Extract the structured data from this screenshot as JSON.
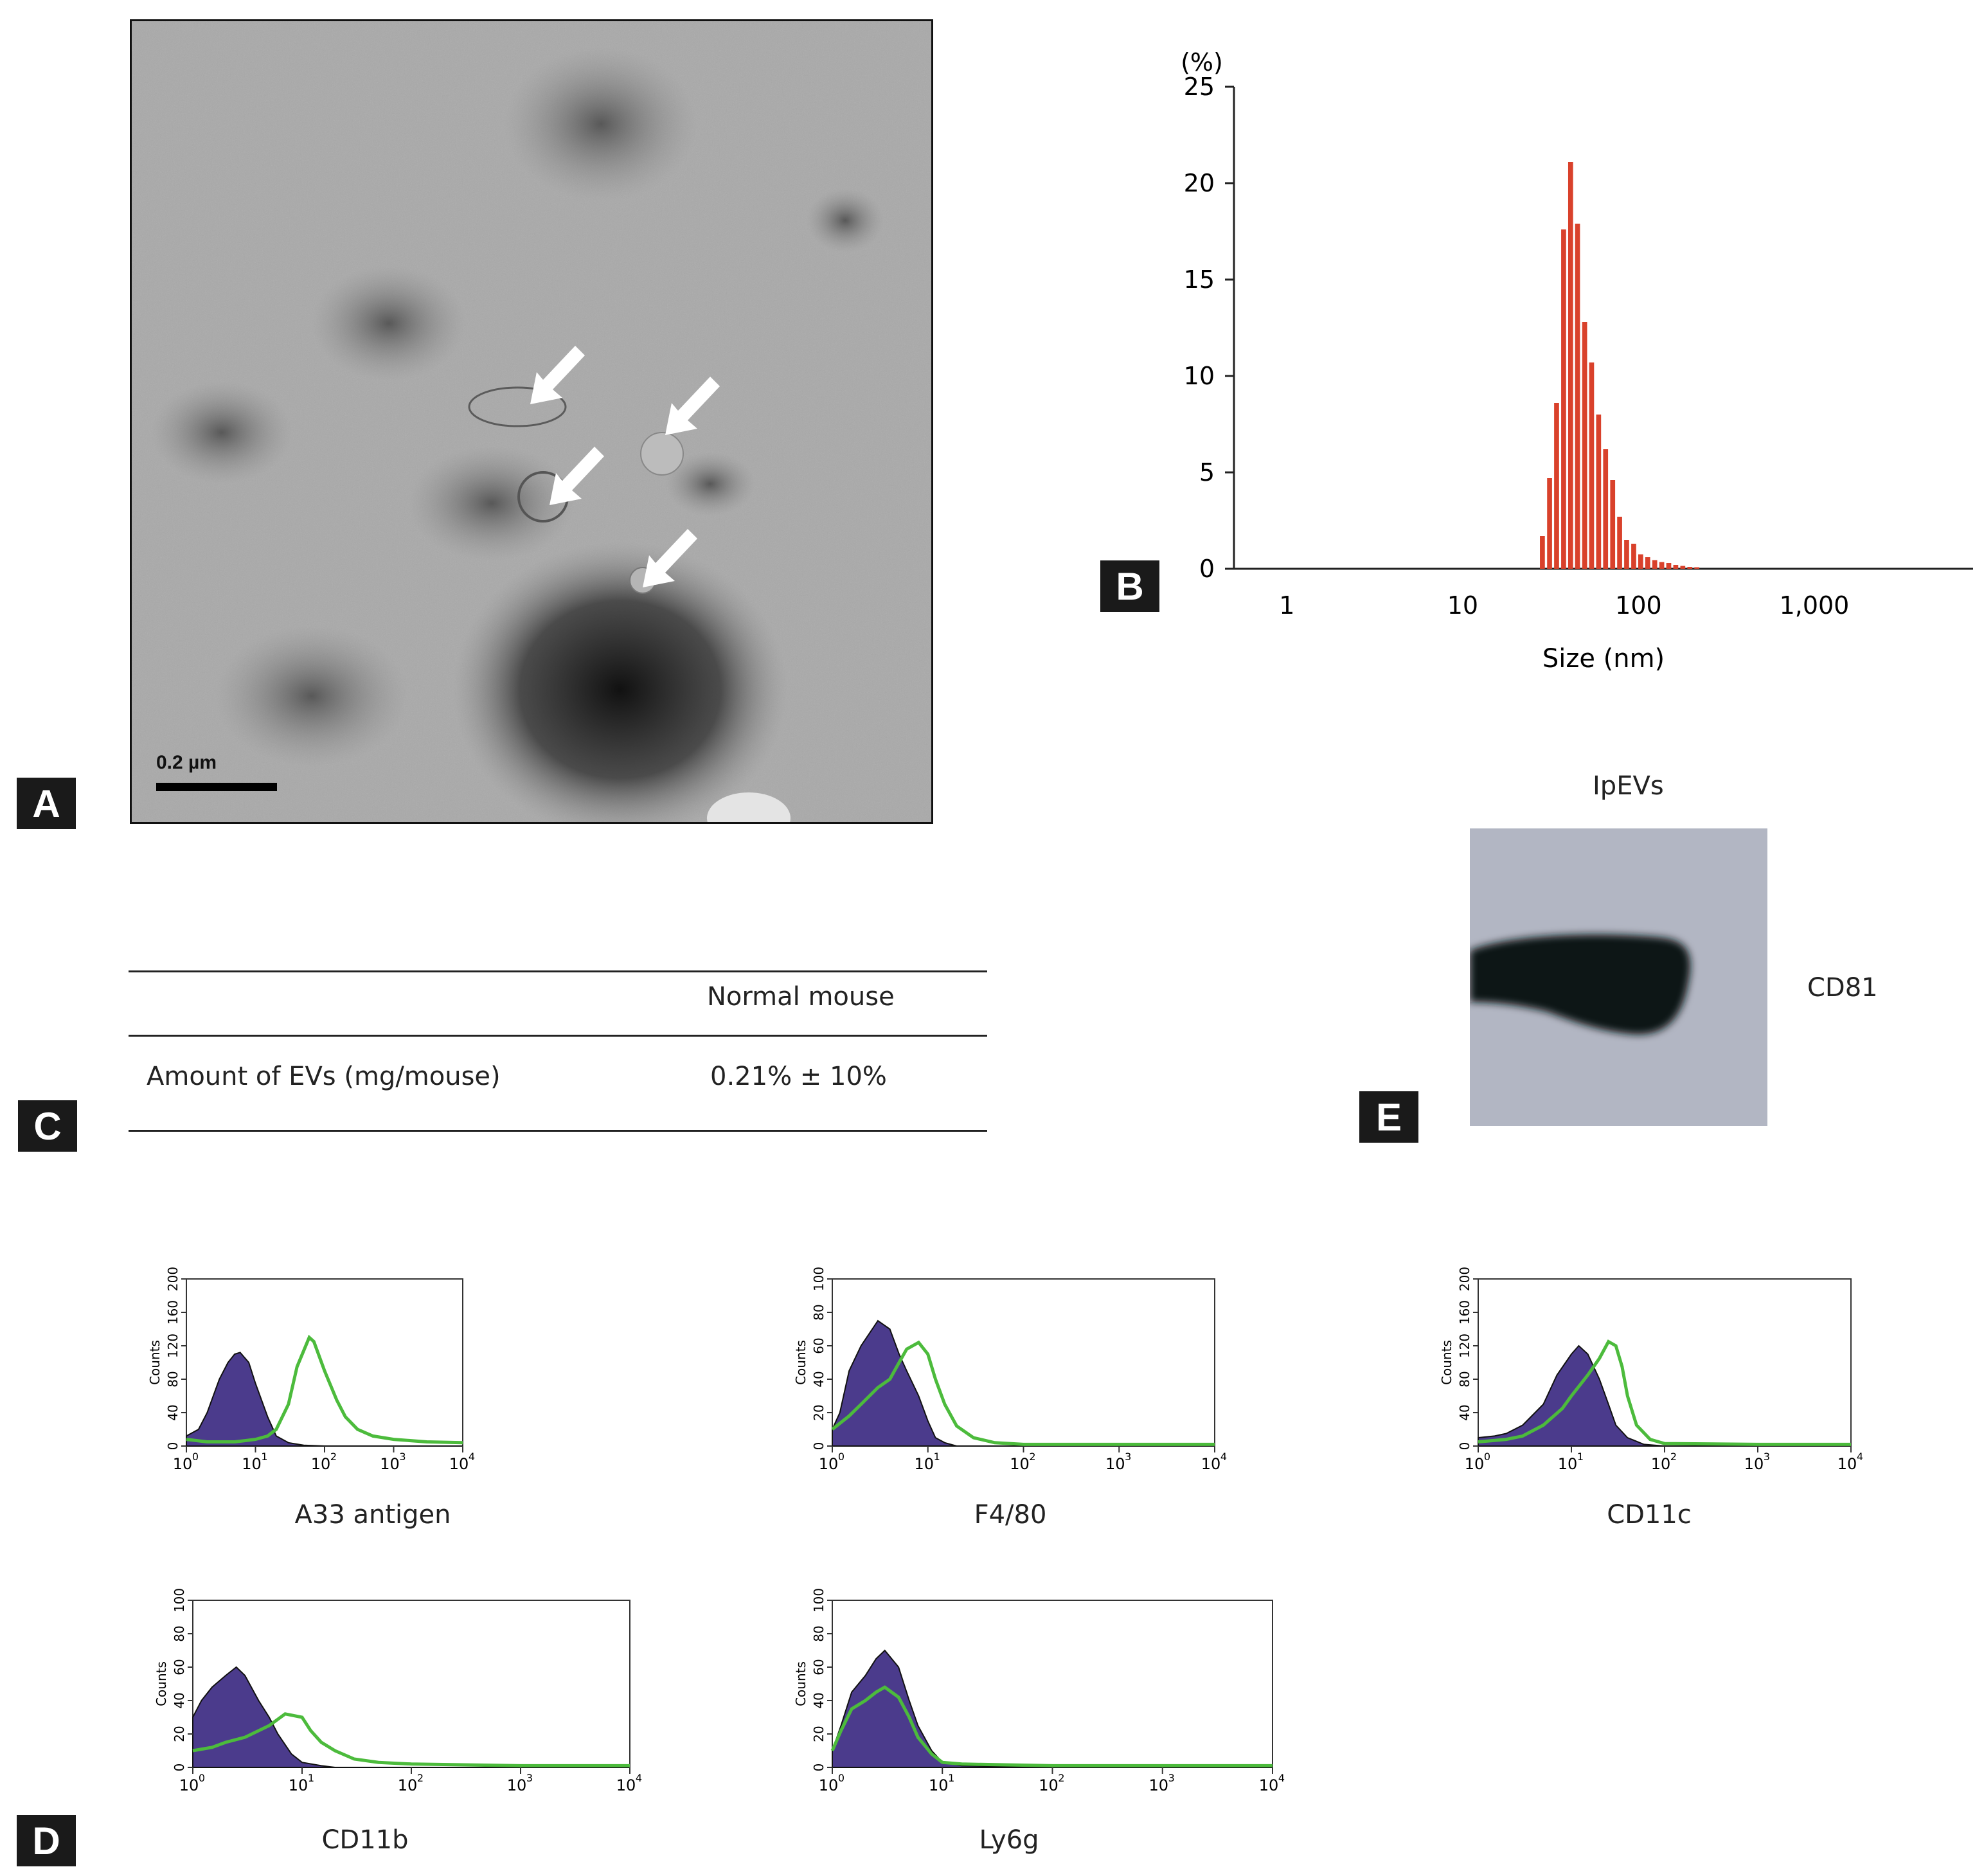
{
  "panels": {
    "A": "A",
    "B": "B",
    "C": "C",
    "D": "D",
    "E": "E"
  },
  "panel_a": {
    "scale_bar_label": "0.2 µm"
  },
  "chart_data": [
    {
      "type": "bar",
      "panel": "B",
      "ylabel": "(%)",
      "xlabel": "Size (nm)",
      "x_scale": "log",
      "xlim": [
        0.5,
        8000
      ],
      "ylim": [
        0,
        25
      ],
      "x_tick_labels": [
        "1",
        "10",
        "100",
        "1,000"
      ],
      "x_ticks": [
        1,
        10,
        100,
        1000
      ],
      "y_ticks": [
        0,
        5,
        10,
        15,
        20,
        25
      ],
      "color": "#d9412b",
      "x": [
        28.4,
        31.2,
        34.2,
        37.5,
        41.1,
        45.0,
        49.4,
        54.1,
        59.3,
        65.0,
        71.3,
        78.1,
        85.6,
        93.9,
        102.9,
        112.8,
        123.7,
        135.6,
        148.6,
        162.9,
        178.6,
        195.8,
        214.6
      ],
      "values": [
        1.7,
        4.7,
        8.6,
        17.6,
        21.1,
        17.9,
        12.8,
        10.7,
        8.0,
        6.2,
        4.6,
        2.7,
        1.5,
        1.3,
        0.75,
        0.6,
        0.45,
        0.35,
        0.3,
        0.2,
        0.15,
        0.1,
        0.08
      ]
    },
    {
      "type": "area",
      "panel": "D",
      "title": "A33 antigen",
      "x_scale": "log",
      "xlim": [
        1,
        10000
      ],
      "ylim": [
        0,
        200
      ],
      "y_ticks": [
        0,
        40,
        80,
        120,
        160,
        200
      ],
      "ylabel": "Counts",
      "series": [
        {
          "style": "filled",
          "color": "#4b3b8c",
          "x": [
            1,
            1.5,
            2,
            3,
            4,
            5,
            6,
            8,
            10,
            15,
            20,
            30,
            50,
            100,
            1000,
            10000
          ],
          "values": [
            12,
            20,
            40,
            80,
            100,
            110,
            112,
            100,
            75,
            35,
            12,
            4,
            1,
            0,
            0,
            0
          ]
        },
        {
          "style": "line",
          "color": "#4cbb3c",
          "x": [
            1,
            2,
            5,
            10,
            15,
            20,
            30,
            40,
            60,
            70,
            100,
            150,
            200,
            300,
            500,
            1000,
            3000,
            10000
          ],
          "values": [
            8,
            5,
            5,
            8,
            12,
            20,
            50,
            95,
            130,
            125,
            90,
            55,
            35,
            20,
            12,
            8,
            5,
            4
          ]
        }
      ]
    },
    {
      "type": "area",
      "panel": "D",
      "title": "F4/80",
      "x_scale": "log",
      "xlim": [
        1,
        10000
      ],
      "ylim": [
        0,
        100
      ],
      "y_ticks": [
        0,
        20,
        40,
        60,
        80,
        100
      ],
      "ylabel": "Counts",
      "series": [
        {
          "style": "filled",
          "color": "#4b3b8c",
          "x": [
            1,
            1.2,
            1.5,
            2,
            3,
            4,
            5,
            6,
            8,
            10,
            12,
            15,
            20,
            100,
            10000
          ],
          "values": [
            10,
            20,
            45,
            60,
            75,
            70,
            55,
            45,
            30,
            15,
            5,
            2,
            0,
            0,
            0
          ]
        },
        {
          "style": "line",
          "color": "#4cbb3c",
          "x": [
            1,
            1.5,
            2,
            3,
            4,
            5,
            6,
            8,
            10,
            12,
            15,
            20,
            30,
            50,
            100,
            1000,
            10000
          ],
          "values": [
            10,
            18,
            25,
            35,
            40,
            50,
            58,
            62,
            55,
            40,
            25,
            12,
            5,
            2,
            1,
            1,
            1
          ]
        }
      ]
    },
    {
      "type": "area",
      "panel": "D",
      "title": "CD11c",
      "x_scale": "log",
      "xlim": [
        1,
        10000
      ],
      "ylim": [
        0,
        200
      ],
      "y_ticks": [
        0,
        40,
        80,
        120,
        160,
        200
      ],
      "ylabel": "Counts",
      "series": [
        {
          "style": "filled",
          "color": "#4b3b8c",
          "x": [
            1,
            1.5,
            2,
            3,
            5,
            7,
            10,
            12,
            15,
            20,
            25,
            30,
            40,
            60,
            100,
            10000
          ],
          "values": [
            10,
            12,
            15,
            25,
            50,
            85,
            110,
            120,
            110,
            80,
            50,
            25,
            10,
            2,
            0,
            0
          ]
        },
        {
          "style": "line",
          "color": "#4cbb3c",
          "x": [
            1,
            2,
            3,
            5,
            8,
            10,
            15,
            20,
            25,
            30,
            35,
            40,
            50,
            70,
            100,
            1000,
            10000
          ],
          "values": [
            5,
            8,
            12,
            25,
            45,
            60,
            85,
            105,
            125,
            120,
            95,
            60,
            25,
            8,
            3,
            2,
            2
          ]
        }
      ]
    },
    {
      "type": "area",
      "panel": "D",
      "title": "CD11b",
      "x_scale": "log",
      "xlim": [
        1,
        10000
      ],
      "ylim": [
        0,
        100
      ],
      "y_ticks": [
        0,
        20,
        40,
        60,
        80,
        100
      ],
      "ylabel": "Counts",
      "series": [
        {
          "style": "filled",
          "color": "#4b3b8c",
          "x": [
            1,
            1.2,
            1.5,
            2,
            2.5,
            3,
            4,
            5,
            6,
            8,
            10,
            15,
            20,
            100,
            10000
          ],
          "values": [
            30,
            40,
            48,
            55,
            60,
            55,
            40,
            30,
            20,
            8,
            3,
            1,
            0,
            0,
            0
          ]
        },
        {
          "style": "line",
          "color": "#4cbb3c",
          "x": [
            1,
            1.5,
            2,
            3,
            5,
            7,
            10,
            12,
            15,
            20,
            30,
            50,
            100,
            1000,
            10000
          ],
          "values": [
            10,
            12,
            15,
            18,
            25,
            32,
            30,
            22,
            15,
            10,
            5,
            3,
            2,
            1,
            1
          ]
        }
      ]
    },
    {
      "type": "area",
      "panel": "D",
      "title": "Ly6g",
      "x_scale": "log",
      "xlim": [
        1,
        10000
      ],
      "ylim": [
        0,
        100
      ],
      "y_ticks": [
        0,
        20,
        40,
        60,
        80,
        100
      ],
      "ylabel": "Counts",
      "series": [
        {
          "style": "filled",
          "color": "#4b3b8c",
          "x": [
            1,
            1.2,
            1.5,
            2,
            2.5,
            3,
            4,
            5,
            6,
            8,
            10,
            15,
            100,
            10000
          ],
          "values": [
            10,
            25,
            45,
            55,
            65,
            70,
            60,
            40,
            25,
            10,
            3,
            1,
            0,
            0
          ]
        },
        {
          "style": "line",
          "color": "#4cbb3c",
          "x": [
            1,
            1.2,
            1.5,
            2,
            2.5,
            3,
            4,
            5,
            6,
            8,
            10,
            15,
            100,
            10000
          ],
          "values": [
            10,
            22,
            35,
            40,
            45,
            48,
            42,
            30,
            18,
            8,
            3,
            2,
            1,
            1
          ]
        }
      ]
    }
  ],
  "table_c": {
    "column_header": "Normal mouse",
    "row_label": "Amount of EVs (mg/mouse)",
    "row_value": "0.21% ± 10%"
  },
  "panel_e": {
    "title": "IpEVs",
    "band_label": "CD81"
  },
  "flow_axis": {
    "x_tick_labels": [
      "10",
      "10",
      "10",
      "10",
      "10"
    ],
    "x_tick_exponents": [
      "0",
      "1",
      "2",
      "3",
      "4"
    ],
    "counts_label": "Counts"
  }
}
